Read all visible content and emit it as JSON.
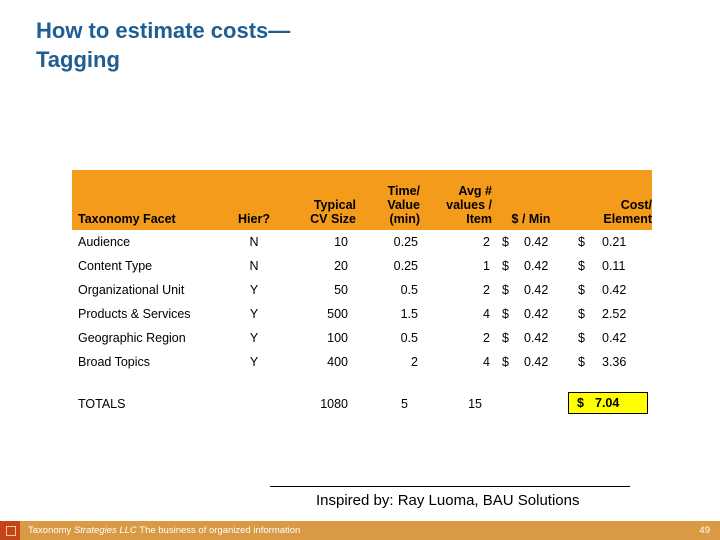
{
  "title": {
    "line1": "How to estimate costs—",
    "line2": "Tagging"
  },
  "table": {
    "headers": {
      "facet": "Taxonomy Facet",
      "hier": "Hier?",
      "cv_size": [
        "Typical",
        "CV Size"
      ],
      "time": [
        "Time/",
        "Value",
        "(min)"
      ],
      "avg_values": [
        "Avg #",
        "values /",
        "Item"
      ],
      "per_min": "$ / Min",
      "cost": [
        "Cost/",
        "Element"
      ]
    },
    "rows": [
      {
        "facet": "Audience",
        "hier": "N",
        "cv_size": "10",
        "time": "0.25",
        "avg": "2",
        "dollar1": "$",
        "per_min": "0.42",
        "dollar2": "$",
        "cost": "0.21"
      },
      {
        "facet": "Content Type",
        "hier": "N",
        "cv_size": "20",
        "time": "0.25",
        "avg": "1",
        "dollar1": "$",
        "per_min": "0.42",
        "dollar2": "$",
        "cost": "0.11"
      },
      {
        "facet": "Organizational Unit",
        "hier": "Y",
        "cv_size": "50",
        "time": "0.5",
        "avg": "2",
        "dollar1": "$",
        "per_min": "0.42",
        "dollar2": "$",
        "cost": "0.42"
      },
      {
        "facet": "Products & Services",
        "hier": "Y",
        "cv_size": "500",
        "time": "1.5",
        "avg": "4",
        "dollar1": "$",
        "per_min": "0.42",
        "dollar2": "$",
        "cost": "2.52"
      },
      {
        "facet": "Geographic Region",
        "hier": "Y",
        "cv_size": "100",
        "time": "0.5",
        "avg": "2",
        "dollar1": "$",
        "per_min": "0.42",
        "dollar2": "$",
        "cost": "0.42"
      },
      {
        "facet": "Broad Topics",
        "hier": "Y",
        "cv_size": "400",
        "time": "2",
        "avg": "4",
        "dollar1": "$",
        "per_min": "0.42",
        "dollar2": "$",
        "cost": "3.36"
      }
    ],
    "totals": {
      "label": "TOTALS",
      "cv_size": "1080",
      "time": "5",
      "avg": "15",
      "dollar": "$",
      "cost": "7.04"
    }
  },
  "credit": "Inspired by: Ray Luoma, BAU Solutions",
  "footer": {
    "company": "Taxonomy",
    "company_em": "Strategies LLC",
    "tagline": "The business of organized information",
    "page": "49"
  },
  "colors": {
    "title": "#1f5d93",
    "header_bg": "#f59b1c",
    "total_highlight": "#ffff00",
    "footer_bar": "#d99a43"
  }
}
